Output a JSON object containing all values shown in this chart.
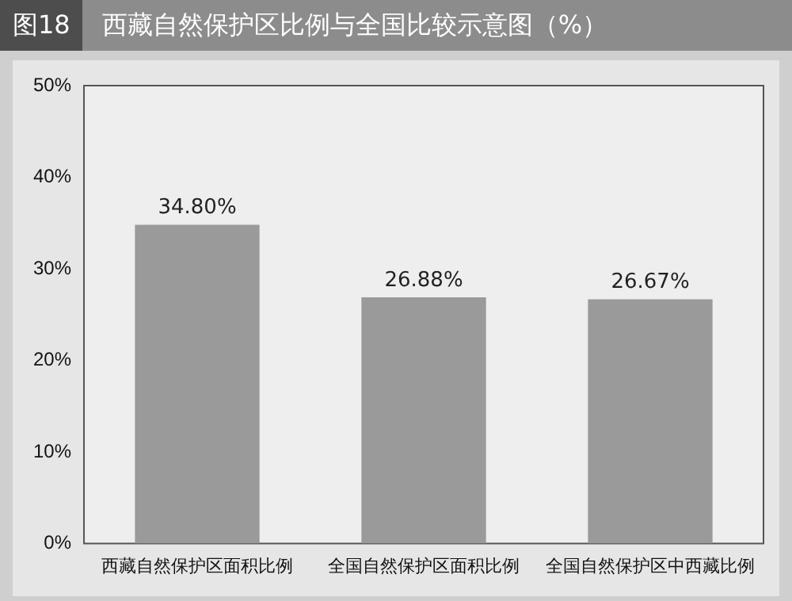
{
  "chart_data": {
    "type": "bar",
    "title": "西藏自然保护区比例与全国比较示意图（%）",
    "annotations": [
      "图18"
    ],
    "categories": [
      "西藏自然保护区面积比例",
      "全国自然保护区面积比例",
      "全国自然保护区中西藏比例"
    ],
    "values": [
      34.8,
      26.88,
      26.67
    ],
    "color": "#9a9a9a",
    "value_labels": [
      "34.80%",
      "26.88%",
      "26.67%"
    ],
    "ylim": [
      0,
      50
    ],
    "yticks": [
      {
        "value": 0,
        "label": "0%"
      },
      {
        "value": 10,
        "label": "10%"
      },
      {
        "value": 20,
        "label": "20%"
      },
      {
        "value": 30,
        "label": "30%"
      },
      {
        "value": 40,
        "label": "40%"
      },
      {
        "value": 50,
        "label": "50%"
      }
    ],
    "grid": false,
    "legend": false
  }
}
